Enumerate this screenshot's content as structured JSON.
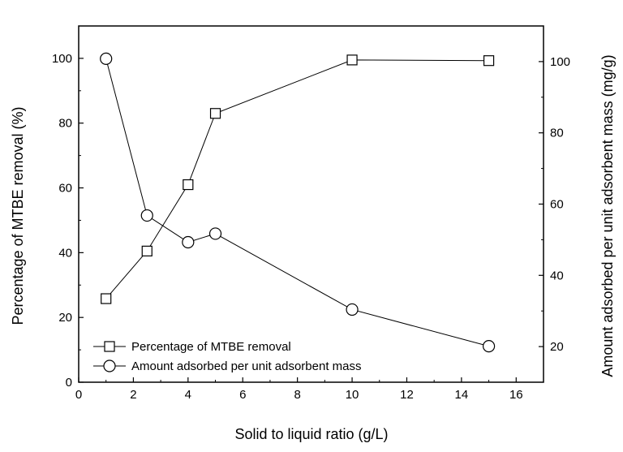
{
  "chart_data": {
    "type": "line",
    "title": "",
    "xlabel": "Solid to liquid ratio (g/L)",
    "ylabel_left": "Percentage of MTBE removal (%)",
    "ylabel_right": "Amount adsorbed per unit adsorbent mass (mg/g)",
    "xlim": [
      0,
      17
    ],
    "ylim_left": [
      0,
      110
    ],
    "ylim_right": [
      10,
      110
    ],
    "x_ticks": [
      0,
      2,
      4,
      6,
      8,
      10,
      12,
      14,
      16
    ],
    "y_ticks_left": [
      0,
      20,
      40,
      60,
      80,
      100
    ],
    "y_ticks_right": [
      20,
      40,
      60,
      80,
      100
    ],
    "legend_position": "bottom-left",
    "grid": false,
    "series": [
      {
        "name": "Percentage of MTBE removal",
        "axis": "left",
        "marker": "square",
        "x": [
          1,
          2.5,
          4,
          5,
          10,
          15
        ],
        "y": [
          25.8,
          40.5,
          61,
          83,
          99.5,
          99.3
        ]
      },
      {
        "name": "Amount adsorbed per unit adsorbent mass",
        "axis": "right",
        "marker": "circle",
        "x": [
          1,
          2.5,
          4,
          5,
          10,
          15
        ],
        "y": [
          100.8,
          56.8,
          49.3,
          51.7,
          30.4,
          20.1
        ]
      }
    ]
  }
}
